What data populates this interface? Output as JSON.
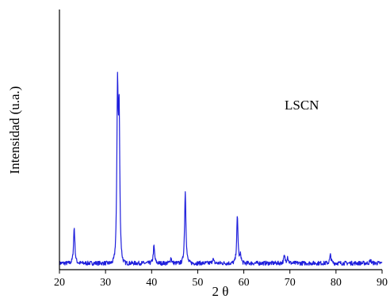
{
  "chart_data": {
    "type": "line",
    "xlabel": "2 θ",
    "ylabel": "Intensidad (u.a.)",
    "annotation": "LSCN",
    "xlim": [
      20,
      90
    ],
    "ylim": [
      0,
      100
    ],
    "xticks": [
      "20",
      "30",
      "40",
      "50",
      "60",
      "70",
      "80",
      "90"
    ],
    "y_tick_labels_shown": false,
    "grid": false,
    "legend": "none",
    "series_color": "#1f1fdc",
    "series": [
      {
        "baseline": 2.5,
        "peaks": [
          {
            "x": 23.2,
            "y": 16.2
          },
          {
            "x": 32.6,
            "y": 66.5
          },
          {
            "x": 32.95,
            "y": 56.0
          },
          {
            "x": 40.5,
            "y": 9.0
          },
          {
            "x": 44.2,
            "y": 4.6
          },
          {
            "x": 47.3,
            "y": 30.0
          },
          {
            "x": 53.3,
            "y": 4.2
          },
          {
            "x": 58.6,
            "y": 20.2
          },
          {
            "x": 59.3,
            "y": 5.5
          },
          {
            "x": 68.8,
            "y": 5.2
          },
          {
            "x": 69.5,
            "y": 5.0
          },
          {
            "x": 78.8,
            "y": 5.6
          },
          {
            "x": 87.5,
            "y": 3.6
          }
        ]
      }
    ]
  }
}
